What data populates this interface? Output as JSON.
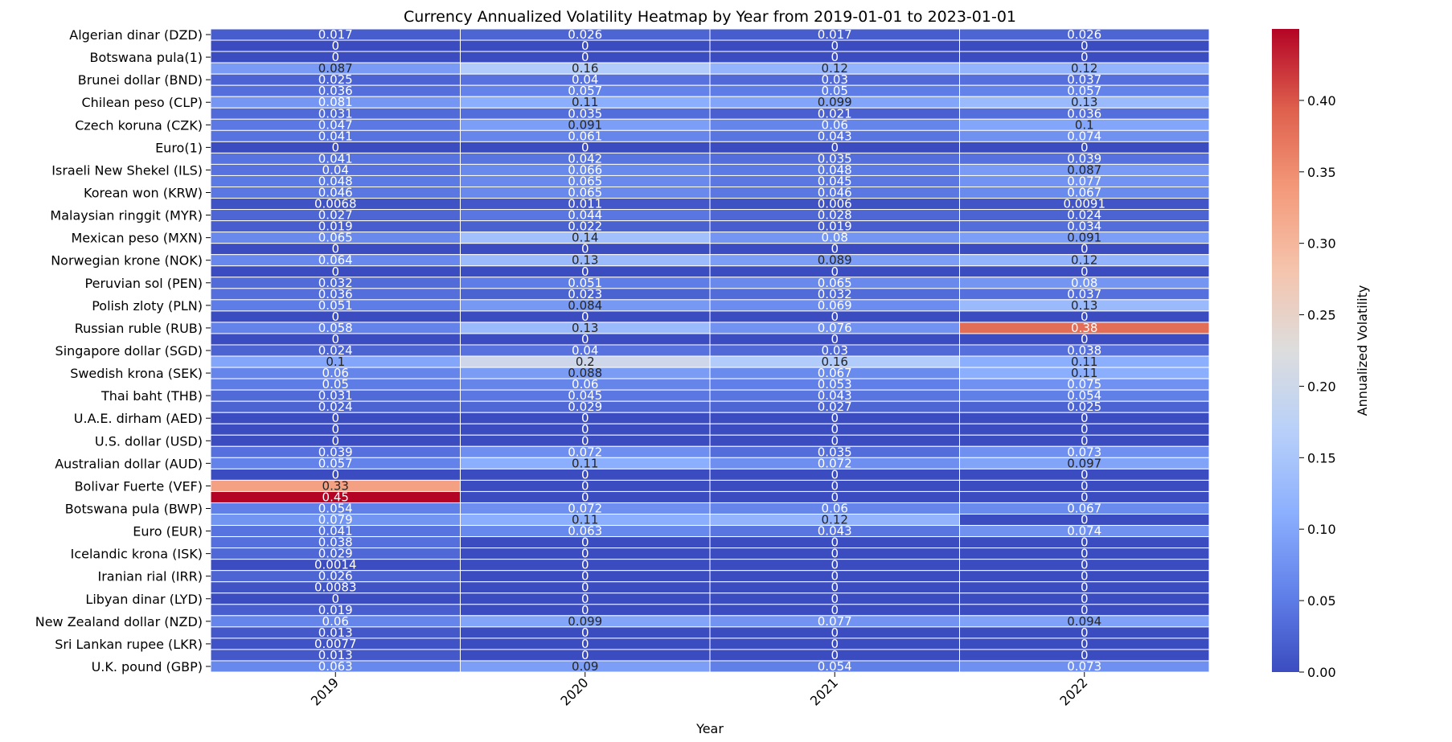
{
  "chart_data": {
    "type": "heatmap",
    "title": "Currency Annualized Volatility Heatmap by Year from 2019-01-01 to 2023-01-01",
    "xlabel": "Year",
    "ylabel": "",
    "colorbar_label": "Annualized Volatility",
    "colormap": "coolwarm",
    "vmin": 0,
    "vmax": 0.45,
    "colorbar_ticks": [
      "0.00",
      "0.05",
      "0.10",
      "0.15",
      "0.20",
      "0.25",
      "0.30",
      "0.35",
      "0.40"
    ],
    "x": [
      "2019",
      "2020",
      "2021",
      "2022"
    ],
    "row_count": 57,
    "y_tick_labels": [
      {
        "row": 0,
        "label": "Algerian dinar (DZD)"
      },
      {
        "row": 2,
        "label": "Botswana pula(1)"
      },
      {
        "row": 4,
        "label": "Brunei dollar (BND)"
      },
      {
        "row": 6,
        "label": "Chilean peso (CLP)"
      },
      {
        "row": 8,
        "label": "Czech koruna (CZK)"
      },
      {
        "row": 10,
        "label": "Euro(1)"
      },
      {
        "row": 12,
        "label": "Israeli New Shekel (ILS)"
      },
      {
        "row": 14,
        "label": "Korean won (KRW)"
      },
      {
        "row": 16,
        "label": "Malaysian ringgit (MYR)"
      },
      {
        "row": 18,
        "label": "Mexican peso (MXN)"
      },
      {
        "row": 20,
        "label": "Norwegian krone (NOK)"
      },
      {
        "row": 22,
        "label": "Peruvian sol (PEN)"
      },
      {
        "row": 24,
        "label": "Polish zloty (PLN)"
      },
      {
        "row": 26,
        "label": "Russian ruble (RUB)"
      },
      {
        "row": 28,
        "label": "Singapore dollar (SGD)"
      },
      {
        "row": 30,
        "label": "Swedish krona (SEK)"
      },
      {
        "row": 32,
        "label": "Thai baht (THB)"
      },
      {
        "row": 34,
        "label": "U.A.E. dirham (AED)"
      },
      {
        "row": 36,
        "label": "U.S. dollar (USD)"
      },
      {
        "row": 38,
        "label": "Australian dollar (AUD)"
      },
      {
        "row": 40,
        "label": "Bolivar Fuerte (VEF)"
      },
      {
        "row": 42,
        "label": "Botswana pula (BWP)"
      },
      {
        "row": 44,
        "label": "Euro (EUR)"
      },
      {
        "row": 46,
        "label": "Icelandic krona (ISK)"
      },
      {
        "row": 48,
        "label": "Iranian rial (IRR)"
      },
      {
        "row": 50,
        "label": "Libyan dinar (LYD)"
      },
      {
        "row": 52,
        "label": "New Zealand dollar (NZD)"
      },
      {
        "row": 54,
        "label": "Sri Lankan rupee (LKR)"
      },
      {
        "row": 56,
        "label": "U.K. pound (GBP)"
      }
    ],
    "values": [
      [
        "0.017",
        "0.026",
        "0.017",
        "0.026"
      ],
      [
        "0",
        "0",
        "0",
        "0"
      ],
      [
        "0",
        "0",
        "0",
        "0"
      ],
      [
        "0.087",
        "0.16",
        "0.12",
        "0.12"
      ],
      [
        "0.025",
        "0.04",
        "0.03",
        "0.037"
      ],
      [
        "0.036",
        "0.057",
        "0.05",
        "0.057"
      ],
      [
        "0.081",
        "0.11",
        "0.099",
        "0.13"
      ],
      [
        "0.031",
        "0.035",
        "0.021",
        "0.036"
      ],
      [
        "0.047",
        "0.091",
        "0.06",
        "0.1"
      ],
      [
        "0.041",
        "0.061",
        "0.043",
        "0.074"
      ],
      [
        "0",
        "0",
        "0",
        "0"
      ],
      [
        "0.041",
        "0.042",
        "0.035",
        "0.039"
      ],
      [
        "0.04",
        "0.066",
        "0.048",
        "0.087"
      ],
      [
        "0.048",
        "0.065",
        "0.045",
        "0.077"
      ],
      [
        "0.046",
        "0.065",
        "0.046",
        "0.067"
      ],
      [
        "0.0068",
        "0.011",
        "0.006",
        "0.0091"
      ],
      [
        "0.027",
        "0.044",
        "0.028",
        "0.024"
      ],
      [
        "0.019",
        "0.022",
        "0.019",
        "0.034"
      ],
      [
        "0.065",
        "0.14",
        "0.08",
        "0.091"
      ],
      [
        "0",
        "0",
        "0",
        "0"
      ],
      [
        "0.064",
        "0.13",
        "0.089",
        "0.12"
      ],
      [
        "0",
        "0",
        "0",
        "0"
      ],
      [
        "0.032",
        "0.051",
        "0.065",
        "0.08"
      ],
      [
        "0.036",
        "0.023",
        "0.032",
        "0.037"
      ],
      [
        "0.051",
        "0.084",
        "0.069",
        "0.13"
      ],
      [
        "0",
        "0",
        "0",
        "0"
      ],
      [
        "0.058",
        "0.13",
        "0.076",
        "0.38"
      ],
      [
        "0",
        "0",
        "0",
        "0"
      ],
      [
        "0.024",
        "0.04",
        "0.03",
        "0.038"
      ],
      [
        "0.1",
        "0.2",
        "0.16",
        "0.11"
      ],
      [
        "0.06",
        "0.088",
        "0.067",
        "0.11"
      ],
      [
        "0.05",
        "0.06",
        "0.053",
        "0.075"
      ],
      [
        "0.031",
        "0.045",
        "0.043",
        "0.054"
      ],
      [
        "0.024",
        "0.029",
        "0.027",
        "0.025"
      ],
      [
        "0",
        "0",
        "0",
        "0"
      ],
      [
        "0",
        "0",
        "0",
        "0"
      ],
      [
        "0",
        "0",
        "0",
        "0"
      ],
      [
        "0.039",
        "0.072",
        "0.035",
        "0.073"
      ],
      [
        "0.057",
        "0.11",
        "0.072",
        "0.097"
      ],
      [
        "0",
        "0",
        "0",
        "0"
      ],
      [
        "0.33",
        "0",
        "0",
        "0"
      ],
      [
        "0.45",
        "0",
        "0",
        "0"
      ],
      [
        "0.054",
        "0.072",
        "0.06",
        "0.067"
      ],
      [
        "0.079",
        "0.11",
        "0.12",
        "0"
      ],
      [
        "0.041",
        "0.063",
        "0.043",
        "0.074"
      ],
      [
        "0.038",
        "0",
        "0",
        "0"
      ],
      [
        "0.029",
        "0",
        "0",
        "0"
      ],
      [
        "0.0014",
        "0",
        "0",
        "0"
      ],
      [
        "0.026",
        "0",
        "0",
        "0"
      ],
      [
        "0.0083",
        "0",
        "0",
        "0"
      ],
      [
        "0",
        "0",
        "0",
        "0"
      ],
      [
        "0.019",
        "0",
        "0",
        "0"
      ],
      [
        "0.06",
        "0.099",
        "0.077",
        "0.094"
      ],
      [
        "0.013",
        "0",
        "0",
        "0"
      ],
      [
        "0.0077",
        "0",
        "0",
        "0"
      ],
      [
        "0.013",
        "0",
        "0",
        "0"
      ],
      [
        "0.063",
        "0.09",
        "0.054",
        "0.073"
      ]
    ],
    "grid": false,
    "legend": "colorbar-right"
  }
}
